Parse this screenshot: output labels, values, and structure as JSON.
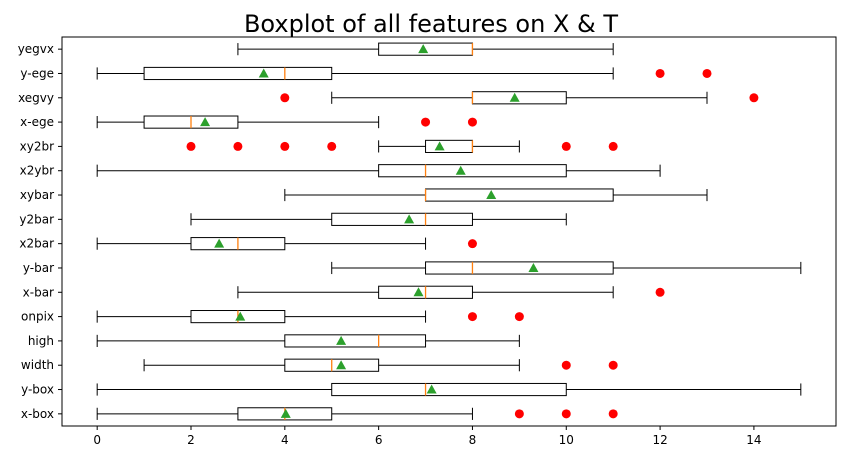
{
  "chart_data": {
    "type": "boxplot",
    "orientation": "horizontal",
    "title": "Boxplot of all features on X & T",
    "xlabel": "",
    "ylabel": "",
    "xlim": [
      -0.75,
      15.75
    ],
    "xticks": [
      0,
      2,
      4,
      6,
      8,
      10,
      12,
      14
    ],
    "grid": false,
    "colors": {
      "box_edge": "#000000",
      "median": "#ff7f0e",
      "mean_marker": "#2ca02c",
      "outlier": "#ff0000"
    },
    "categories": [
      "x-box",
      "y-box",
      "width",
      "high",
      "onpix",
      "x-bar",
      "y-bar",
      "x2bar",
      "y2bar",
      "xybar",
      "x2ybr",
      "xy2br",
      "x-ege",
      "xegvy",
      "y-ege",
      "yegvx"
    ],
    "boxes": [
      {
        "label": "x-box",
        "whisker_low": 0,
        "q1": 3,
        "median": 4,
        "q3": 5,
        "whisker_high": 8,
        "mean": 4.02,
        "outliers": [
          9,
          10,
          11
        ]
      },
      {
        "label": "y-box",
        "whisker_low": 0,
        "q1": 5,
        "median": 7,
        "q3": 10,
        "whisker_high": 15,
        "mean": 7.13,
        "outliers": []
      },
      {
        "label": "width",
        "whisker_low": 1,
        "q1": 4,
        "median": 5,
        "q3": 6,
        "whisker_high": 9,
        "mean": 5.2,
        "outliers": [
          10,
          11
        ]
      },
      {
        "label": "high",
        "whisker_low": 0,
        "q1": 4,
        "median": 6,
        "q3": 7,
        "whisker_high": 9,
        "mean": 5.2,
        "outliers": []
      },
      {
        "label": "onpix",
        "whisker_low": 0,
        "q1": 2,
        "median": 3,
        "q3": 4,
        "whisker_high": 7,
        "mean": 3.05,
        "outliers": [
          8,
          9
        ]
      },
      {
        "label": "x-bar",
        "whisker_low": 3,
        "q1": 6,
        "median": 7,
        "q3": 8,
        "whisker_high": 11,
        "mean": 6.85,
        "outliers": [
          12
        ]
      },
      {
        "label": "y-bar",
        "whisker_low": 5,
        "q1": 7,
        "median": 8,
        "q3": 11,
        "whisker_high": 15,
        "mean": 9.3,
        "outliers": []
      },
      {
        "label": "x2bar",
        "whisker_low": 0,
        "q1": 2,
        "median": 3,
        "q3": 4,
        "whisker_high": 7,
        "mean": 2.6,
        "outliers": [
          8
        ]
      },
      {
        "label": "y2bar",
        "whisker_low": 2,
        "q1": 5,
        "median": 7,
        "q3": 8,
        "whisker_high": 10,
        "mean": 6.65,
        "outliers": []
      },
      {
        "label": "xybar",
        "whisker_low": 4,
        "q1": 7,
        "median": 7,
        "q3": 11,
        "whisker_high": 13,
        "mean": 8.4,
        "outliers": []
      },
      {
        "label": "x2ybr",
        "whisker_low": 0,
        "q1": 6,
        "median": 7,
        "q3": 10,
        "whisker_high": 12,
        "mean": 7.75,
        "outliers": []
      },
      {
        "label": "xy2br",
        "whisker_low": 6,
        "q1": 7,
        "median": 8,
        "q3": 8,
        "whisker_high": 9,
        "mean": 7.3,
        "outliers": [
          2,
          3,
          4,
          5,
          10,
          11
        ]
      },
      {
        "label": "x-ege",
        "whisker_low": 0,
        "q1": 1,
        "median": 2,
        "q3": 3,
        "whisker_high": 6,
        "mean": 2.3,
        "outliers": [
          7,
          8
        ]
      },
      {
        "label": "xegvy",
        "whisker_low": 5,
        "q1": 8,
        "median": 8,
        "q3": 10,
        "whisker_high": 13,
        "mean": 8.9,
        "outliers": [
          4,
          14
        ]
      },
      {
        "label": "y-ege",
        "whisker_low": 0,
        "q1": 1,
        "median": 4,
        "q3": 5,
        "whisker_high": 11,
        "mean": 3.55,
        "outliers": [
          12,
          13
        ]
      },
      {
        "label": "yegvx",
        "whisker_low": 3,
        "q1": 6,
        "median": 8,
        "q3": 8,
        "whisker_high": 11,
        "mean": 6.95,
        "outliers": []
      }
    ]
  }
}
